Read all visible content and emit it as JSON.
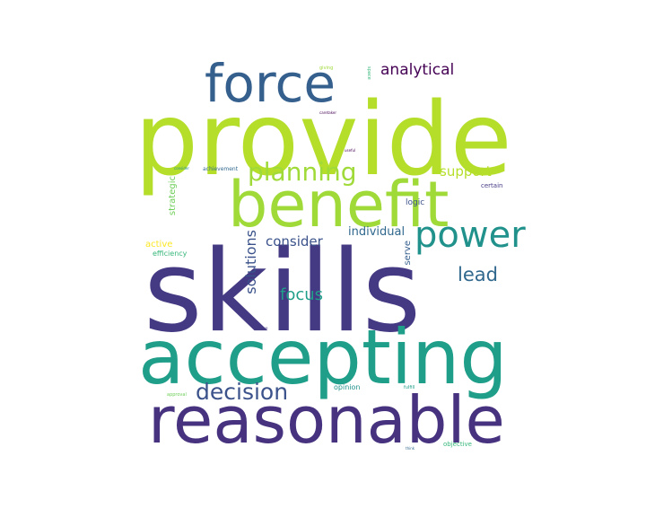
{
  "colors": {
    "lime": "#b5de2b",
    "yellowgreen": "#a0da39",
    "teal": "#1f9e89",
    "teal2": "#21918c",
    "blue": "#355f8d",
    "blue2": "#3b528b",
    "indigo": "#443983",
    "purple": "#46327e",
    "dark": "#440154",
    "green": "#35b779",
    "green2": "#6ece58",
    "yellow": "#fde725",
    "slate": "#31688e"
  },
  "words": {
    "provide": "provide",
    "skills": "skills",
    "accepting": "accepting",
    "reasonable": "reasonable",
    "benefit": "benefit",
    "force": "force",
    "power": "power",
    "planning": "planning",
    "decision": "decision",
    "analytical": "analytical",
    "lead": "lead",
    "support": "support",
    "focus": "focus",
    "consider": "consider",
    "solutions": "solutions",
    "individual": "individual",
    "strategic": "strategic",
    "active": "active",
    "efficiency": "efficiency",
    "serve": "serve",
    "logic": "logic",
    "certain": "certain",
    "opinion": "opinion",
    "achievement": "achievement",
    "objective": "objective",
    "fulfill": "fulfill",
    "approval": "approval",
    "giving": "giving",
    "space": "space",
    "caretaker": "caretaker",
    "useful": "useful",
    "believe": "believe",
    "think": "think",
    "consider_small": "consider"
  }
}
